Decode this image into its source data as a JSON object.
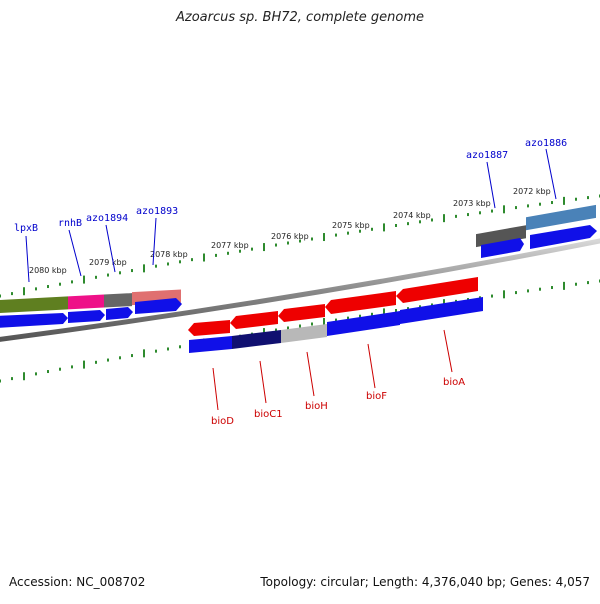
{
  "title": "Azoarcus sp. BH72, complete genome",
  "footer": {
    "accession": "Accession: NC_008702",
    "summary": "Topology: circular; Length: 4,376,040 bp; Genes: 4,057"
  },
  "kbp_labels": [
    "2080 kbp",
    "2079 kbp",
    "2078 kbp",
    "2077 kbp",
    "2076 kbp",
    "2075 kbp",
    "2074 kbp",
    "2073 kbp",
    "2072 kbp"
  ],
  "top_gene_labels": [
    "lpxB",
    "rnhB",
    "azo1894",
    "azo1893",
    "azo1887",
    "azo1886"
  ],
  "bottom_gene_labels": [
    "bioD",
    "bioC1",
    "bioH",
    "bioF",
    "bioA"
  ],
  "colors": {
    "top_label": "#0000cc",
    "bottom_label": "#cc0000",
    "tick": "#2e8b2e",
    "backbone": "#808080"
  }
}
